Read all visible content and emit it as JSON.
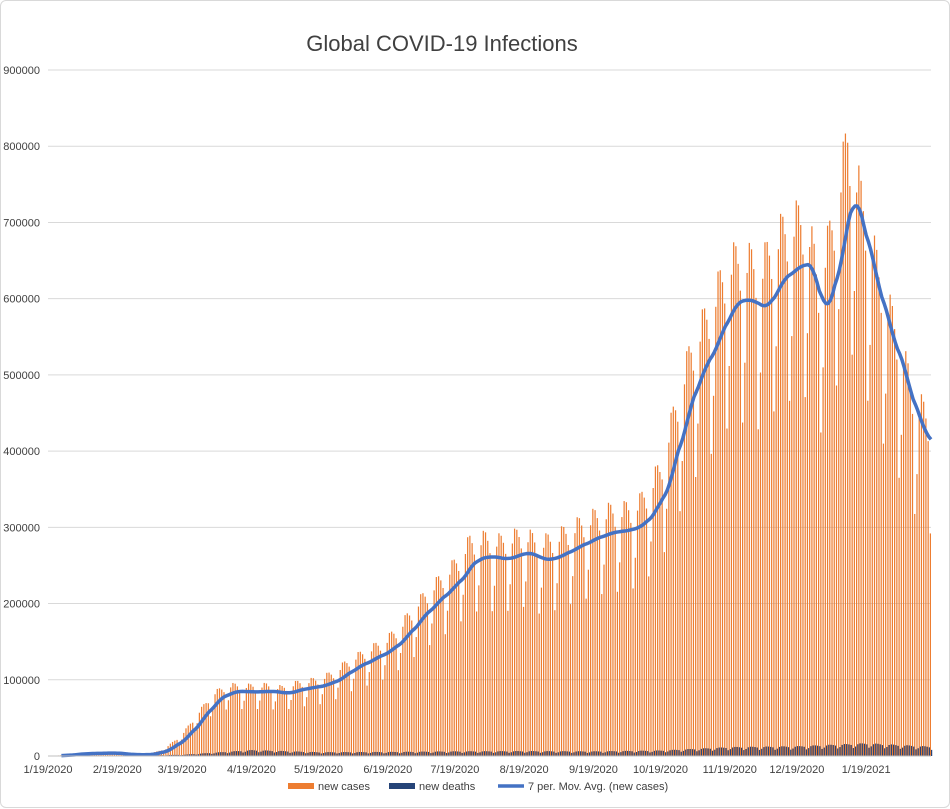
{
  "chart_data": {
    "type": "bar",
    "title": "Global COVID-19 Infections",
    "xlabel": "",
    "ylabel": "",
    "ylim": [
      0,
      900000
    ],
    "y_ticks": [
      0,
      100000,
      200000,
      300000,
      400000,
      500000,
      600000,
      700000,
      800000,
      900000
    ],
    "x_tick_labels": [
      "1/19/2020",
      "2/19/2020",
      "3/19/2020",
      "4/19/2020",
      "5/19/2020",
      "6/19/2020",
      "7/19/2020",
      "8/19/2020",
      "9/19/2020",
      "10/19/2020",
      "11/19/2020",
      "12/19/2020",
      "1/19/2021"
    ],
    "x_range": [
      "1/19/2020",
      "2/17/2021"
    ],
    "grid": true,
    "legend_position": "bottom",
    "series": [
      {
        "name": "new cases",
        "kind": "bar",
        "color": "#ed7d31",
        "weekly_average_points": [
          [
            "1/19/2020",
            0
          ],
          [
            "1/26/2020",
            1000
          ],
          [
            "2/2/2020",
            3000
          ],
          [
            "2/9/2020",
            3500
          ],
          [
            "2/16/2020",
            4000
          ],
          [
            "2/19/2020",
            3000
          ],
          [
            "2/26/2020",
            1500
          ],
          [
            "3/4/2020",
            2000
          ],
          [
            "3/11/2020",
            8000
          ],
          [
            "3/19/2020",
            25000
          ],
          [
            "3/26/2020",
            50000
          ],
          [
            "4/2/2020",
            75000
          ],
          [
            "4/9/2020",
            85000
          ],
          [
            "4/19/2020",
            84000
          ],
          [
            "4/26/2020",
            85000
          ],
          [
            "5/3/2020",
            82000
          ],
          [
            "5/10/2020",
            88000
          ],
          [
            "5/19/2020",
            92000
          ],
          [
            "5/26/2020",
            100000
          ],
          [
            "6/2/2020",
            115000
          ],
          [
            "6/9/2020",
            125000
          ],
          [
            "6/19/2020",
            140000
          ],
          [
            "6/26/2020",
            160000
          ],
          [
            "7/3/2020",
            185000
          ],
          [
            "7/10/2020",
            205000
          ],
          [
            "7/19/2020",
            230000
          ],
          [
            "7/26/2020",
            258000
          ],
          [
            "8/2/2020",
            262000
          ],
          [
            "8/9/2020",
            258000
          ],
          [
            "8/19/2020",
            268000
          ],
          [
            "8/26/2020",
            256000
          ],
          [
            "9/2/2020",
            262000
          ],
          [
            "9/9/2020",
            273000
          ],
          [
            "9/19/2020",
            287000
          ],
          [
            "9/26/2020",
            294000
          ],
          [
            "10/3/2020",
            296000
          ],
          [
            "10/10/2020",
            305000
          ],
          [
            "10/19/2020",
            345000
          ],
          [
            "10/26/2020",
            420000
          ],
          [
            "11/2/2020",
            490000
          ],
          [
            "11/9/2020",
            530000
          ],
          [
            "11/19/2020",
            595000
          ],
          [
            "11/26/2020",
            600000
          ],
          [
            "12/3/2020",
            585000
          ],
          [
            "12/10/2020",
            625000
          ],
          [
            "12/19/2020",
            645000
          ],
          [
            "12/24/2020",
            645000
          ],
          [
            "12/29/2020",
            570000
          ],
          [
            "1/5/2021",
            650000
          ],
          [
            "1/11/2021",
            745000
          ],
          [
            "1/19/2021",
            650000
          ],
          [
            "1/26/2021",
            570000
          ],
          [
            "2/2/2021",
            510000
          ],
          [
            "2/9/2021",
            440000
          ],
          [
            "2/17/2021",
            400000
          ]
        ]
      },
      {
        "name": "new deaths",
        "kind": "bar",
        "color": "#264478",
        "weekly_average_points": [
          [
            "1/19/2020",
            0
          ],
          [
            "2/19/2020",
            100
          ],
          [
            "3/19/2020",
            1500
          ],
          [
            "4/19/2020",
            7000
          ],
          [
            "5/19/2020",
            4500
          ],
          [
            "6/19/2020",
            4800
          ],
          [
            "7/19/2020",
            5500
          ],
          [
            "8/19/2020",
            5800
          ],
          [
            "9/19/2020",
            5500
          ],
          [
            "10/19/2020",
            6500
          ],
          [
            "11/19/2020",
            10500
          ],
          [
            "12/19/2020",
            11500
          ],
          [
            "1/19/2021",
            15000
          ],
          [
            "2/17/2021",
            11000
          ]
        ]
      },
      {
        "name": "7 per. Mov. Avg. (new cases)",
        "kind": "line",
        "color": "#4472c4"
      }
    ]
  }
}
